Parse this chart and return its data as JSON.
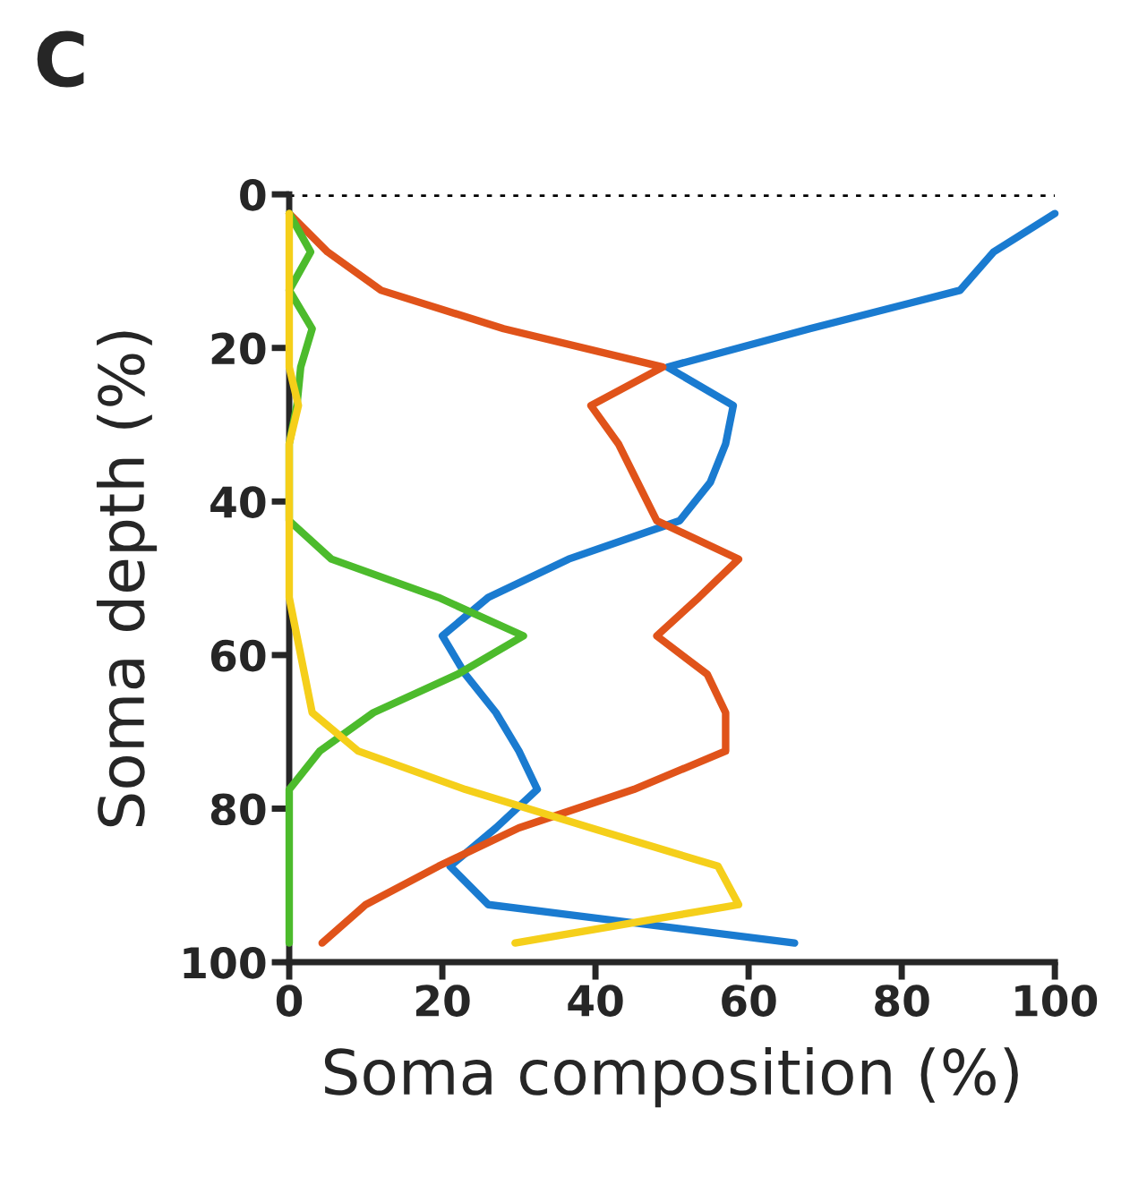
{
  "chart_data": {
    "type": "line",
    "title": "C",
    "orientation": "horizontal",
    "xlabel": "Soma composition (%)",
    "ylabel": "Soma depth (%)",
    "x": [
      2.5,
      7.5,
      12.5,
      17.5,
      22.5,
      27.5,
      32.5,
      37.5,
      42.5,
      47.5,
      52.5,
      57.5,
      62.5,
      67.5,
      72.5,
      77.5,
      82.5,
      87.5,
      92.5,
      97.5
    ],
    "series": [
      {
        "color": "#1a7bd0",
        "values": [
          100,
          92,
          87.6,
          68,
          49.4,
          58,
          57,
          55,
          51,
          36.5,
          26,
          20,
          23,
          27,
          30,
          32.4,
          27,
          21,
          26,
          66
        ]
      },
      {
        "color": "#e0531a",
        "values": [
          0,
          5,
          12,
          28,
          48.8,
          39.4,
          43,
          45.5,
          48,
          58.7,
          53.5,
          48,
          54.6,
          57,
          57,
          45,
          30,
          19.5,
          10,
          4.3
        ]
      },
      {
        "color": "#4cbb2c",
        "values": [
          0,
          2.8,
          0,
          3,
          1.5,
          1,
          0,
          0,
          0,
          5.5,
          19.5,
          30.6,
          22,
          11,
          4,
          0,
          0,
          0,
          0,
          0
        ]
      },
      {
        "color": "#f5cf1a",
        "values": [
          0,
          0,
          0,
          0,
          0,
          1.2,
          0,
          0,
          0,
          0,
          0,
          1,
          2,
          3,
          9,
          23,
          39.4,
          56,
          58.7,
          29.5
        ]
      }
    ],
    "xlim": [
      0,
      100
    ],
    "xticks": [
      0,
      20,
      40,
      60,
      80,
      100
    ],
    "ylim": [
      100,
      0
    ],
    "yticks": [
      0,
      20,
      40,
      60,
      80,
      100
    ],
    "ref_lines": [
      {
        "axis": "y",
        "value": 0,
        "color": "#000000",
        "line_style": "dotted"
      }
    ],
    "grid": false,
    "legend": false,
    "marker": "none",
    "line_style": "solid"
  }
}
